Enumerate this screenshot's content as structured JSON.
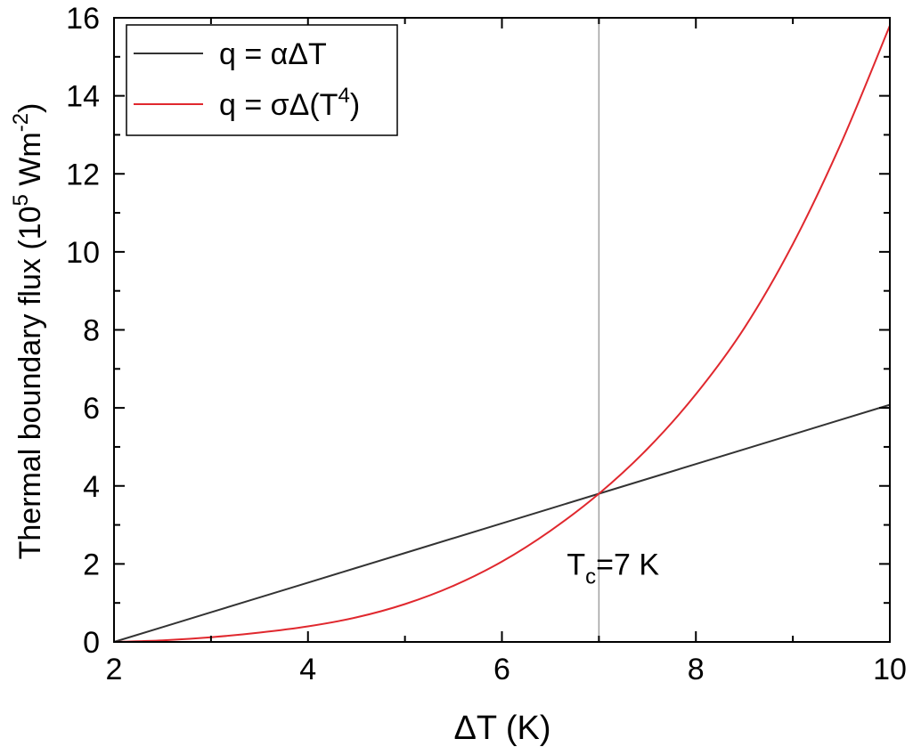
{
  "chart_data": {
    "type": "line",
    "title": "",
    "xlabel": "ΔT (K)",
    "ylabel": {
      "prefix": "Thermal boundary flux (10",
      "exp1": "5",
      "middle": " Wm",
      "exp2": "-2",
      "suffix": ")"
    },
    "xlim": [
      2,
      10
    ],
    "ylim": [
      0,
      16
    ],
    "x_ticks": [
      2,
      4,
      6,
      8,
      10
    ],
    "y_ticks": [
      0,
      2,
      4,
      6,
      8,
      10,
      12,
      14,
      16
    ],
    "x_minor_step": 1,
    "y_minor_step": 1,
    "grid": false,
    "legend_position": "top-left",
    "series": [
      {
        "name": "q = αΔT",
        "color": "#333333",
        "x": [
          2,
          3,
          4,
          5,
          6,
          7,
          8,
          9,
          10
        ],
        "y": [
          0,
          0.76,
          1.52,
          2.28,
          3.04,
          3.8,
          4.56,
          5.32,
          6.08
        ]
      },
      {
        "name_main": "q = σΔ(T",
        "name_exp": "4",
        "name_end": ")",
        "color": "#e0282e",
        "x": [
          2,
          2.5,
          3,
          3.5,
          4,
          4.5,
          5,
          5.5,
          6,
          6.5,
          7,
          7.5,
          8,
          8.5,
          9,
          9.5,
          10
        ],
        "y": [
          0,
          0.04,
          0.12,
          0.24,
          0.4,
          0.63,
          0.97,
          1.44,
          2.06,
          2.85,
          3.8,
          4.95,
          6.35,
          8.05,
          10.2,
          12.8,
          15.8
        ]
      }
    ],
    "vline": {
      "x": 7,
      "color": "#a0a0a0"
    },
    "annotation": {
      "main": "T",
      "sub": "c",
      "rest": "=7 K",
      "x": 7,
      "y": 2
    }
  }
}
